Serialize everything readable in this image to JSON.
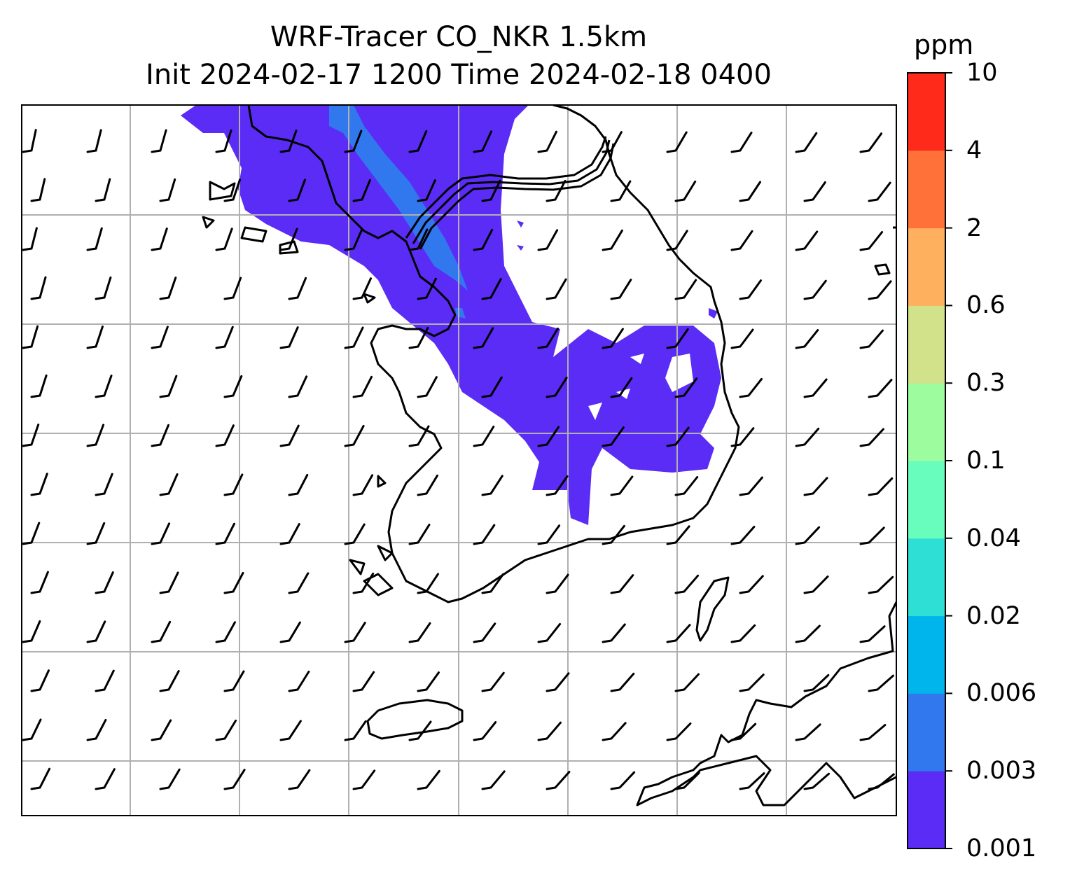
{
  "title_line1": "WRF-Tracer CO_NKR 1.5km",
  "title_line2": "Init 2024-02-17 1200 Time 2024-02-18 0400",
  "colorbar": {
    "unit": "ppm",
    "levels": [
      "0.001",
      "0.003",
      "0.006",
      "0.02",
      "0.04",
      "0.1",
      "0.3",
      "0.6",
      "2",
      "4",
      "10"
    ],
    "colors": [
      "#5b2cf5",
      "#3178ef",
      "#00b4ec",
      "#2edfd6",
      "#69fdbd",
      "#9dfd9e",
      "#d2e28a",
      "#feb05f",
      "#ff7139",
      "#ff2a1a"
    ]
  },
  "map": {
    "plume_colors": {
      "low": "#5b2cf5",
      "mid": "#3178ef"
    },
    "grid_color": "#b0b0b0",
    "wind_barbs": "barbs",
    "coastline": "black"
  }
}
